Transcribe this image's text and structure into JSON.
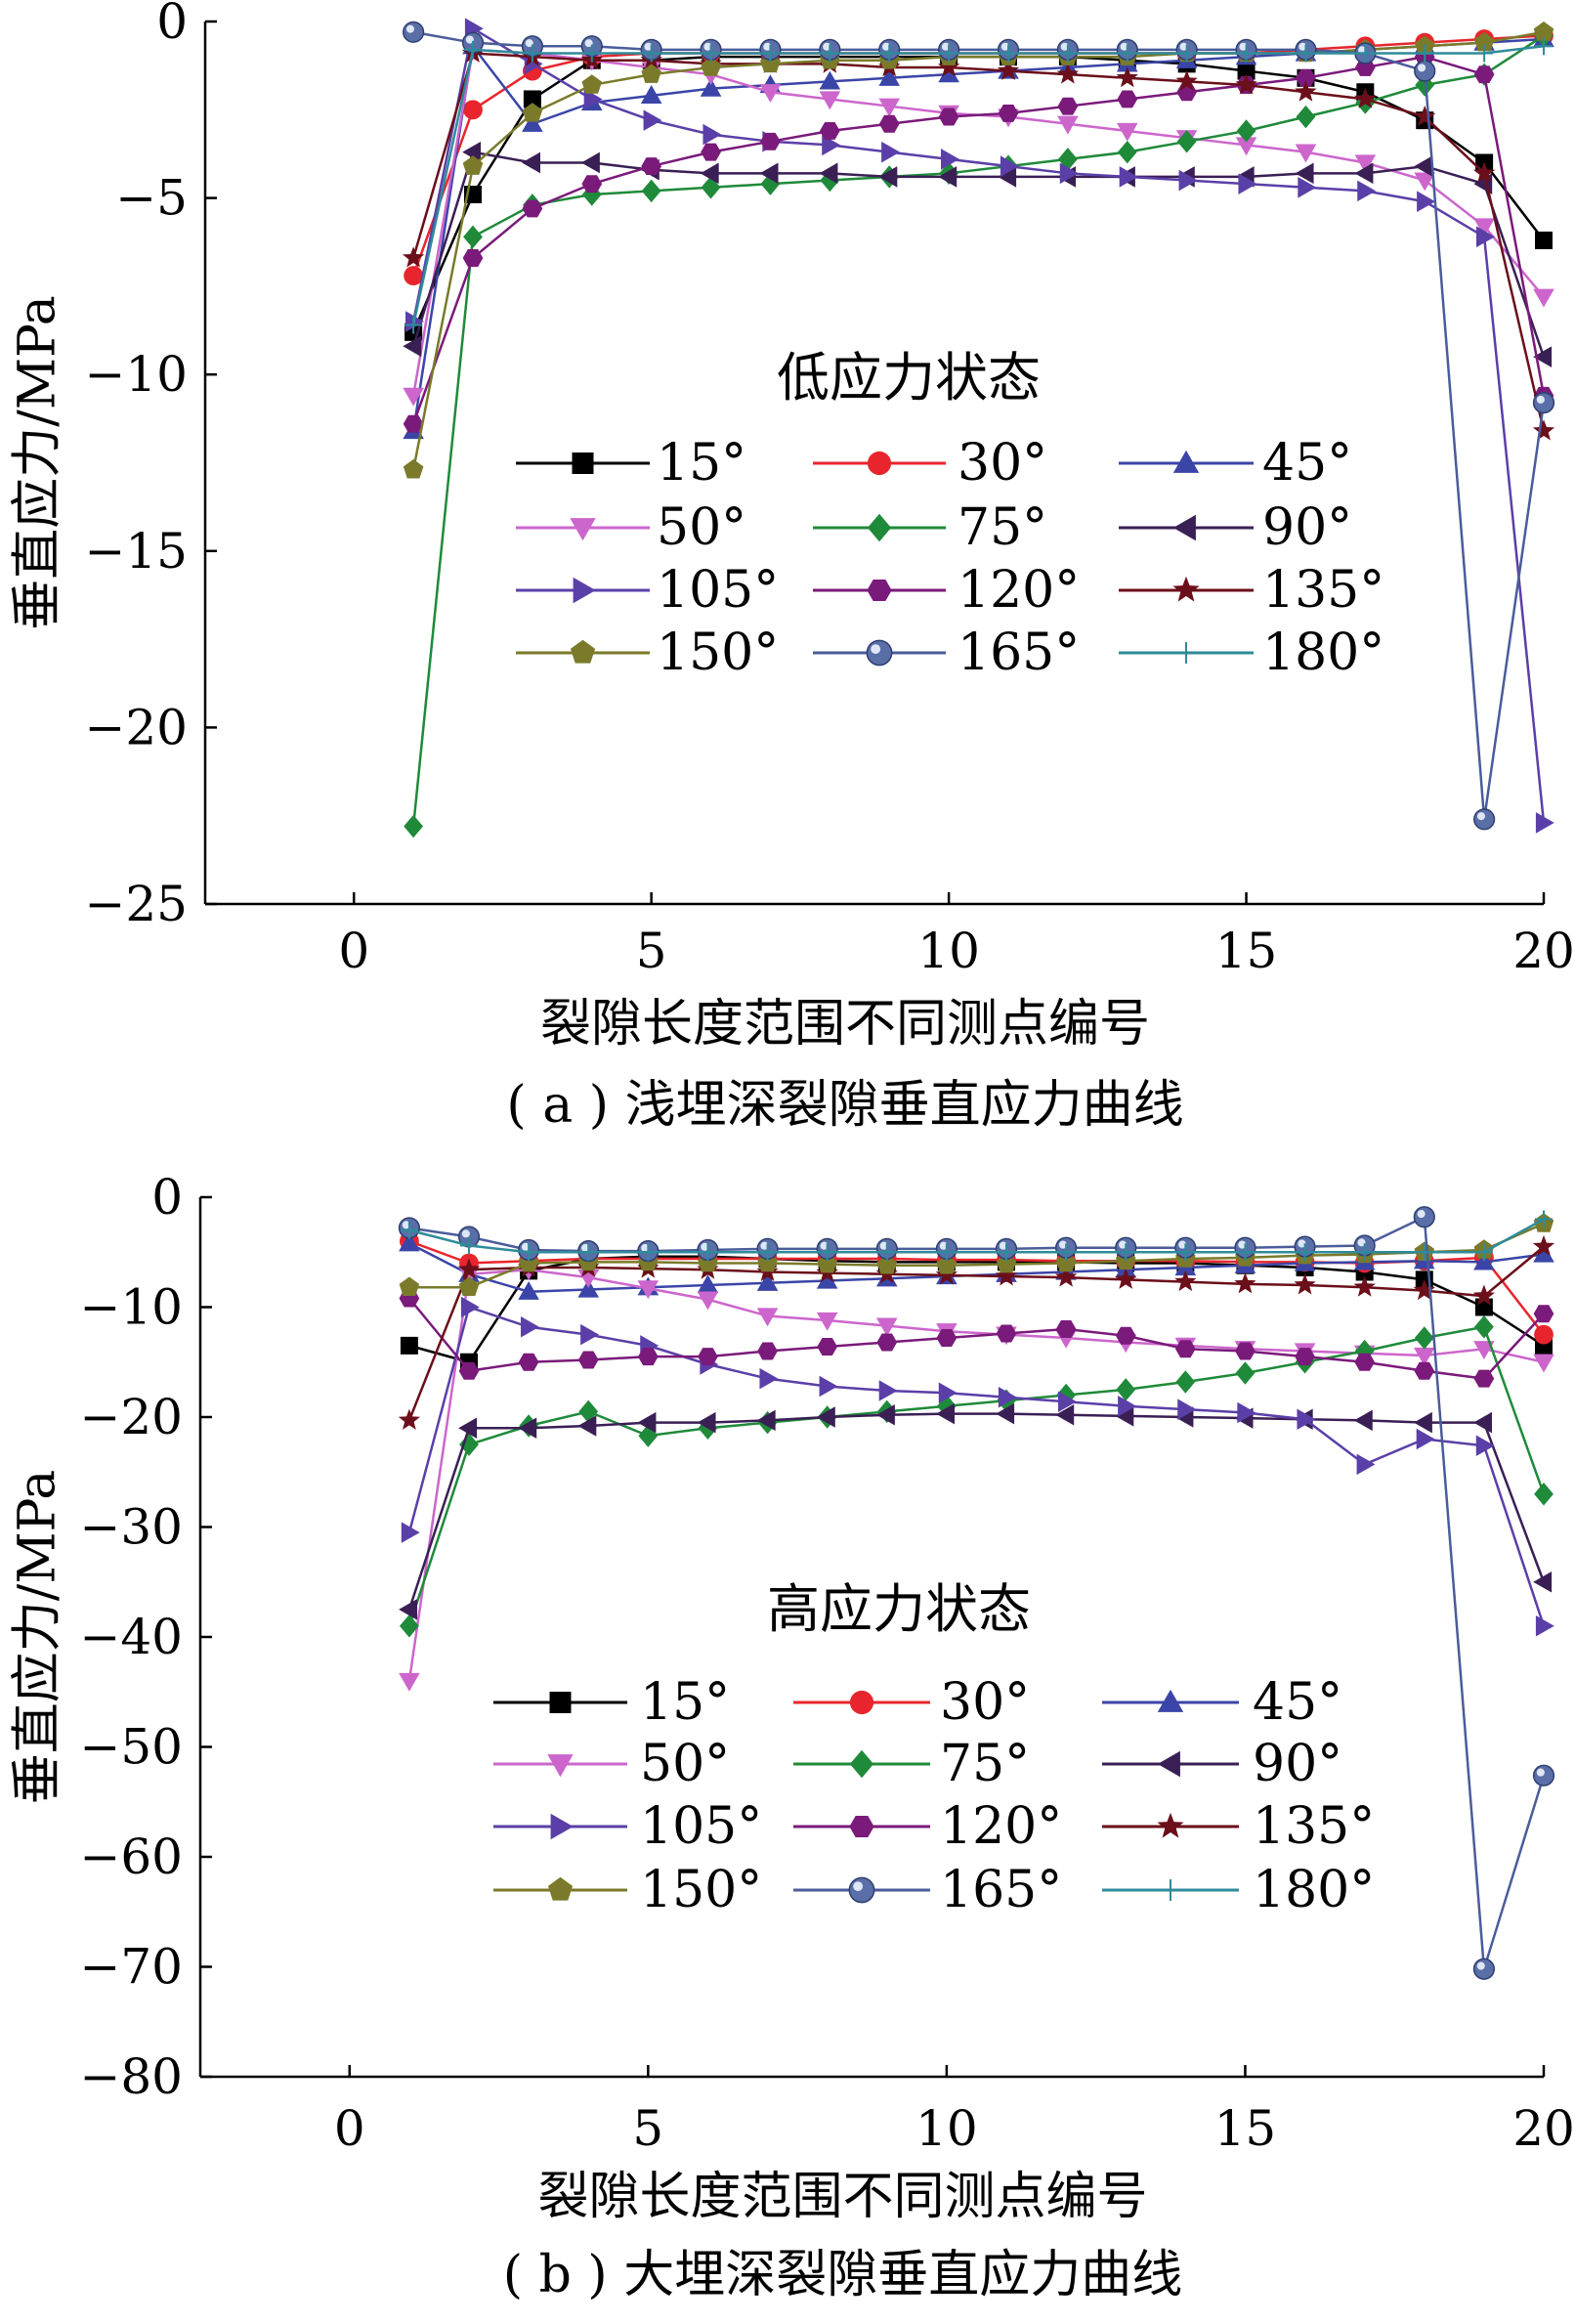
{
  "chart_data": [
    {
      "type": "line",
      "title": "低应力状态",
      "xlabel": "裂隙长度范围不同测点编号",
      "ylabel": "垂直应力/MPa",
      "caption": "( a ) 浅埋深裂隙垂直应力曲线",
      "xlim": [
        -2.5,
        20
      ],
      "ylim": [
        -25,
        0
      ],
      "xticks": [
        "0",
        "5",
        "10",
        "15",
        "20"
      ],
      "yticks": [
        "0",
        "−5",
        "−10",
        "−15",
        "−20",
        "−25"
      ],
      "grid": false,
      "legend_position": "center",
      "x": [
        1,
        2,
        3,
        4,
        5,
        6,
        7,
        8,
        9,
        10,
        11,
        12,
        13,
        14,
        15,
        16,
        17,
        18,
        19,
        20
      ],
      "series": [
        {
          "name": "15°",
          "color": "#000000",
          "marker": "square",
          "values": [
            -8.8,
            -4.9,
            -2.2,
            -1.1,
            -1.1,
            -1.0,
            -1.0,
            -1.0,
            -1.0,
            -1.0,
            -1.0,
            -1.0,
            -1.1,
            -1.2,
            -1.4,
            -1.6,
            -2.0,
            -2.8,
            -4.0,
            -6.2
          ]
        },
        {
          "name": "30°",
          "color": "#e8252c",
          "marker": "circle",
          "values": [
            -7.2,
            -2.5,
            -1.4,
            -1.0,
            -0.9,
            -0.9,
            -0.9,
            -0.9,
            -0.9,
            -0.9,
            -0.9,
            -0.9,
            -0.9,
            -0.9,
            -0.9,
            -0.8,
            -0.7,
            -0.6,
            -0.5,
            -0.4
          ]
        },
        {
          "name": "45°",
          "color": "#3b45a8",
          "marker": "triangle-up",
          "values": [
            -11.6,
            -0.7,
            -2.9,
            -2.3,
            -2.1,
            -1.9,
            -1.8,
            -1.7,
            -1.6,
            -1.5,
            -1.4,
            -1.3,
            -1.2,
            -1.1,
            -1.0,
            -0.9,
            -0.8,
            -0.7,
            -0.6,
            -0.5
          ]
        },
        {
          "name": "50°",
          "color": "#cc66cc",
          "marker": "triangle-down",
          "values": [
            -10.6,
            -0.8,
            -0.9,
            -1.1,
            -1.3,
            -1.5,
            -2.0,
            -2.2,
            -2.4,
            -2.6,
            -2.7,
            -2.9,
            -3.1,
            -3.3,
            -3.5,
            -3.7,
            -4.0,
            -4.5,
            -5.8,
            -7.8
          ]
        },
        {
          "name": "75°",
          "color": "#1f8a3a",
          "marker": "diamond",
          "values": [
            -22.8,
            -6.1,
            -5.2,
            -4.9,
            -4.8,
            -4.7,
            -4.6,
            -4.5,
            -4.4,
            -4.3,
            -4.1,
            -3.9,
            -3.7,
            -3.4,
            -3.1,
            -2.7,
            -2.3,
            -1.8,
            -1.5,
            -0.4
          ]
        },
        {
          "name": "90°",
          "color": "#3a1f55",
          "marker": "triangle-left",
          "values": [
            -9.2,
            -3.7,
            -4.0,
            -4.0,
            -4.2,
            -4.3,
            -4.3,
            -4.3,
            -4.4,
            -4.4,
            -4.4,
            -4.4,
            -4.4,
            -4.4,
            -4.4,
            -4.3,
            -4.3,
            -4.1,
            -4.6,
            -9.5
          ]
        },
        {
          "name": "105°",
          "color": "#5b3fa8",
          "marker": "triangle-right",
          "values": [
            -8.5,
            -0.2,
            -1.2,
            -2.2,
            -2.8,
            -3.2,
            -3.4,
            -3.5,
            -3.7,
            -3.9,
            -4.1,
            -4.3,
            -4.4,
            -4.5,
            -4.6,
            -4.7,
            -4.8,
            -5.1,
            -6.1,
            -22.7
          ]
        },
        {
          "name": "120°",
          "color": "#7a1a7a",
          "marker": "hexagon",
          "values": [
            -11.4,
            -6.7,
            -5.3,
            -4.6,
            -4.1,
            -3.7,
            -3.4,
            -3.1,
            -2.9,
            -2.7,
            -2.6,
            -2.4,
            -2.2,
            -2.0,
            -1.8,
            -1.6,
            -1.3,
            -1.0,
            -1.5,
            -10.6
          ]
        },
        {
          "name": "135°",
          "color": "#6b0f1a",
          "marker": "star",
          "values": [
            -6.7,
            -0.9,
            -1.0,
            -1.1,
            -1.1,
            -1.2,
            -1.2,
            -1.2,
            -1.3,
            -1.3,
            -1.4,
            -1.5,
            -1.6,
            -1.7,
            -1.8,
            -2.0,
            -2.2,
            -2.7,
            -4.3,
            -11.6
          ]
        },
        {
          "name": "150°",
          "color": "#7a7a2a",
          "marker": "pentagon",
          "values": [
            -12.7,
            -4.1,
            -2.6,
            -1.8,
            -1.5,
            -1.3,
            -1.2,
            -1.1,
            -1.1,
            -1.0,
            -1.0,
            -1.0,
            -1.0,
            -0.9,
            -0.9,
            -0.9,
            -0.8,
            -0.7,
            -0.6,
            -0.3
          ]
        },
        {
          "name": "165°",
          "color": "#4a5c9a",
          "marker": "ball",
          "values": [
            -0.3,
            -0.6,
            -0.7,
            -0.7,
            -0.8,
            -0.8,
            -0.8,
            -0.8,
            -0.8,
            -0.8,
            -0.8,
            -0.8,
            -0.8,
            -0.8,
            -0.8,
            -0.8,
            -0.9,
            -1.4,
            -22.6,
            -10.8
          ]
        },
        {
          "name": "180°",
          "color": "#2e8b9a",
          "marker": "plus",
          "values": [
            -8.6,
            -0.8,
            -0.9,
            -0.9,
            -0.9,
            -0.9,
            -0.9,
            -0.9,
            -0.9,
            -0.9,
            -0.9,
            -0.9,
            -0.9,
            -0.9,
            -0.9,
            -0.9,
            -0.9,
            -0.9,
            -0.9,
            -0.7
          ]
        }
      ]
    },
    {
      "type": "line",
      "title": "高应力状态",
      "xlabel": "裂隙长度范围不同测点编号",
      "ylabel": "垂直应力/MPa",
      "caption": "( b ) 大埋深裂隙垂直应力曲线",
      "xlim": [
        -2.5,
        20
      ],
      "ylim": [
        -80,
        0
      ],
      "xticks": [
        "0",
        "5",
        "10",
        "15",
        "20"
      ],
      "yticks": [
        "0",
        "−10",
        "−20",
        "−30",
        "−40",
        "−50",
        "−60",
        "−70",
        "−80"
      ],
      "grid": false,
      "legend_position": "center",
      "x": [
        1,
        2,
        3,
        4,
        5,
        6,
        7,
        8,
        9,
        10,
        11,
        12,
        13,
        14,
        15,
        16,
        17,
        18,
        19,
        20
      ],
      "series": [
        {
          "name": "15°",
          "color": "#000000",
          "marker": "square",
          "values": [
            -13.5,
            -15.0,
            -6.7,
            -5.6,
            -5.4,
            -5.4,
            -5.6,
            -5.8,
            -5.9,
            -5.9,
            -5.9,
            -5.9,
            -6.0,
            -6.0,
            -6.2,
            -6.4,
            -6.8,
            -7.5,
            -10.0,
            -13.5
          ]
        },
        {
          "name": "30°",
          "color": "#e8252c",
          "marker": "circle",
          "values": [
            -4.0,
            -6.0,
            -5.8,
            -5.6,
            -5.6,
            -5.6,
            -5.6,
            -5.6,
            -5.6,
            -5.7,
            -5.7,
            -5.8,
            -5.8,
            -5.8,
            -5.9,
            -5.9,
            -6.0,
            -5.8,
            -5.5,
            -12.5
          ]
        },
        {
          "name": "45°",
          "color": "#3b45a8",
          "marker": "triangle-up",
          "values": [
            -4.2,
            -7.0,
            -8.6,
            -8.4,
            -8.2,
            -8.0,
            -7.8,
            -7.6,
            -7.4,
            -7.2,
            -7.0,
            -6.8,
            -6.6,
            -6.4,
            -6.2,
            -6.0,
            -5.9,
            -5.8,
            -5.9,
            -5.2
          ]
        },
        {
          "name": "50°",
          "color": "#cc66cc",
          "marker": "triangle-down",
          "values": [
            -44.0,
            -7.0,
            -6.6,
            -7.3,
            -8.3,
            -9.3,
            -10.8,
            -11.2,
            -11.7,
            -12.2,
            -12.5,
            -12.8,
            -13.2,
            -13.5,
            -13.8,
            -14.0,
            -14.2,
            -14.4,
            -13.8,
            -15.0
          ]
        },
        {
          "name": "75°",
          "color": "#1f8a3a",
          "marker": "diamond",
          "values": [
            -39.0,
            -22.5,
            -20.8,
            -19.5,
            -21.7,
            -21.0,
            -20.5,
            -20.0,
            -19.5,
            -19.0,
            -18.5,
            -18.0,
            -17.5,
            -16.8,
            -16.0,
            -15.0,
            -14.0,
            -12.8,
            -11.8,
            -27.0
          ]
        },
        {
          "name": "90°",
          "color": "#3a1f55",
          "marker": "triangle-left",
          "values": [
            -37.5,
            -21.0,
            -21.0,
            -20.8,
            -20.5,
            -20.5,
            -20.3,
            -20.0,
            -19.8,
            -19.7,
            -19.7,
            -19.8,
            -19.9,
            -20.0,
            -20.1,
            -20.2,
            -20.3,
            -20.5,
            -20.5,
            -35.0
          ]
        },
        {
          "name": "105°",
          "color": "#5b3fa8",
          "marker": "triangle-right",
          "values": [
            -30.5,
            -10.0,
            -11.8,
            -12.5,
            -13.5,
            -15.2,
            -16.5,
            -17.2,
            -17.6,
            -17.8,
            -18.2,
            -18.6,
            -19.0,
            -19.3,
            -19.6,
            -20.2,
            -24.3,
            -22.0,
            -22.6,
            -39.0
          ]
        },
        {
          "name": "120°",
          "color": "#7a1a7a",
          "marker": "hexagon",
          "values": [
            -9.2,
            -15.8,
            -15.0,
            -14.8,
            -14.5,
            -14.5,
            -14.0,
            -13.6,
            -13.2,
            -12.8,
            -12.4,
            -12.0,
            -12.6,
            -13.8,
            -14.0,
            -14.5,
            -15.0,
            -15.8,
            -16.5,
            -10.6
          ]
        },
        {
          "name": "135°",
          "color": "#6b0f1a",
          "marker": "star",
          "values": [
            -20.3,
            -6.6,
            -6.4,
            -6.4,
            -6.5,
            -6.6,
            -6.8,
            -6.9,
            -7.0,
            -7.1,
            -7.2,
            -7.3,
            -7.5,
            -7.7,
            -7.9,
            -8.0,
            -8.2,
            -8.5,
            -9.0,
            -4.5
          ]
        },
        {
          "name": "150°",
          "color": "#7a7a2a",
          "marker": "pentagon",
          "values": [
            -8.2,
            -8.2,
            -6.0,
            -5.9,
            -5.9,
            -6.0,
            -6.0,
            -6.1,
            -6.2,
            -6.2,
            -6.1,
            -6.0,
            -5.8,
            -5.6,
            -5.5,
            -5.3,
            -5.2,
            -5.0,
            -4.8,
            -2.4
          ]
        },
        {
          "name": "165°",
          "color": "#4a5c9a",
          "marker": "ball",
          "values": [
            -2.8,
            -3.6,
            -4.8,
            -4.9,
            -4.9,
            -4.8,
            -4.7,
            -4.7,
            -4.7,
            -4.7,
            -4.7,
            -4.6,
            -4.6,
            -4.6,
            -4.6,
            -4.5,
            -4.4,
            -1.8,
            -70.2,
            -52.6
          ]
        },
        {
          "name": "180°",
          "color": "#2e8b9a",
          "marker": "plus",
          "values": [
            -3.0,
            -4.4,
            -5.0,
            -5.0,
            -5.0,
            -5.0,
            -5.0,
            -5.0,
            -5.0,
            -5.0,
            -5.0,
            -5.0,
            -5.0,
            -5.0,
            -5.0,
            -5.0,
            -5.0,
            -5.0,
            -5.0,
            -2.0
          ]
        }
      ]
    }
  ]
}
